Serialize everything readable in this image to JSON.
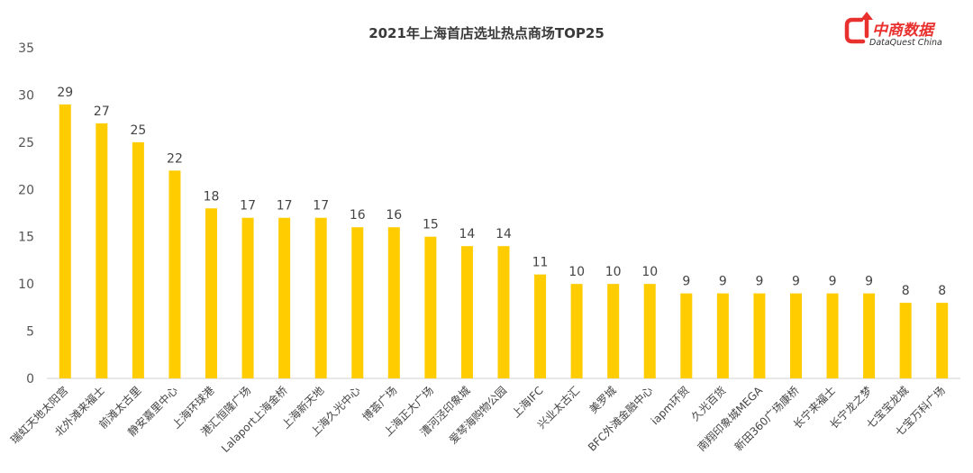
{
  "logo": {
    "name": "中商数据",
    "subtitle": "DataQuest China",
    "color": "#e8312f"
  },
  "chart_data": {
    "type": "bar",
    "title": "2021年上海首店选址热点商场TOP25",
    "xlabel": "",
    "ylabel": "",
    "ylim": [
      0,
      35
    ],
    "yticks": [
      0,
      5,
      10,
      15,
      20,
      25,
      30,
      35
    ],
    "grid": false,
    "bar_color": "#ffcc00",
    "categories": [
      "瑞虹天地太阳宫",
      "北外滩来福士",
      "前滩太古里",
      "静安嘉里中心",
      "上海环球港",
      "港汇恒隆广场",
      "Lalaport上海金桥",
      "上海新天地",
      "上海久光中心",
      "博荟广场",
      "上海正大广场",
      "漕河泾印象城",
      "爱琴海购物公园",
      "上海IFC",
      "兴业太古汇",
      "美罗城",
      "BFC外滩金融中心",
      "iapm环贸",
      "久光百货",
      "南翔印象城MEGA",
      "新田360广场康桥",
      "长宁来福士",
      "长宁龙之梦",
      "七宝宝龙城",
      "七宝万科广场"
    ],
    "values": [
      29,
      27,
      25,
      22,
      18,
      17,
      17,
      17,
      16,
      16,
      15,
      14,
      14,
      11,
      10,
      10,
      10,
      9,
      9,
      9,
      9,
      9,
      9,
      8,
      8
    ]
  }
}
